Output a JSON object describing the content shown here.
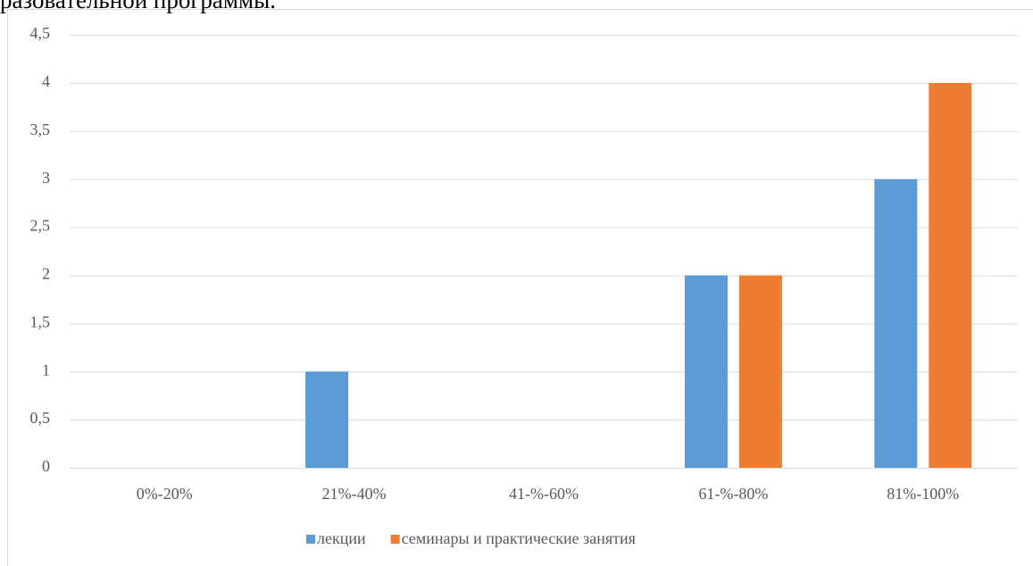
{
  "header_text": "разовательной программы.",
  "chart_data": {
    "type": "bar",
    "categories": [
      "0%-20%",
      "21%-40%",
      "41-%-60%",
      "61-%-80%",
      "81%-100%"
    ],
    "series": [
      {
        "name": "лекции",
        "color": "#5b9bd5",
        "values": [
          0,
          1,
          0,
          2,
          3
        ]
      },
      {
        "name": "семинары и практические занятия",
        "color": "#ed7d31",
        "values": [
          0,
          0,
          0,
          2,
          4
        ]
      }
    ],
    "ylim": [
      0,
      4.5
    ],
    "yticks": [
      0,
      {
        "value": 0.5,
        "label": "0,5"
      },
      1,
      {
        "value": 1.5,
        "label": "1,5"
      },
      2,
      {
        "value": 2.5,
        "label": "2,5"
      },
      3,
      {
        "value": 3.5,
        "label": "3,5"
      },
      4,
      {
        "value": 4.5,
        "label": "4,5"
      }
    ],
    "grid": true,
    "legend": "bottom"
  }
}
